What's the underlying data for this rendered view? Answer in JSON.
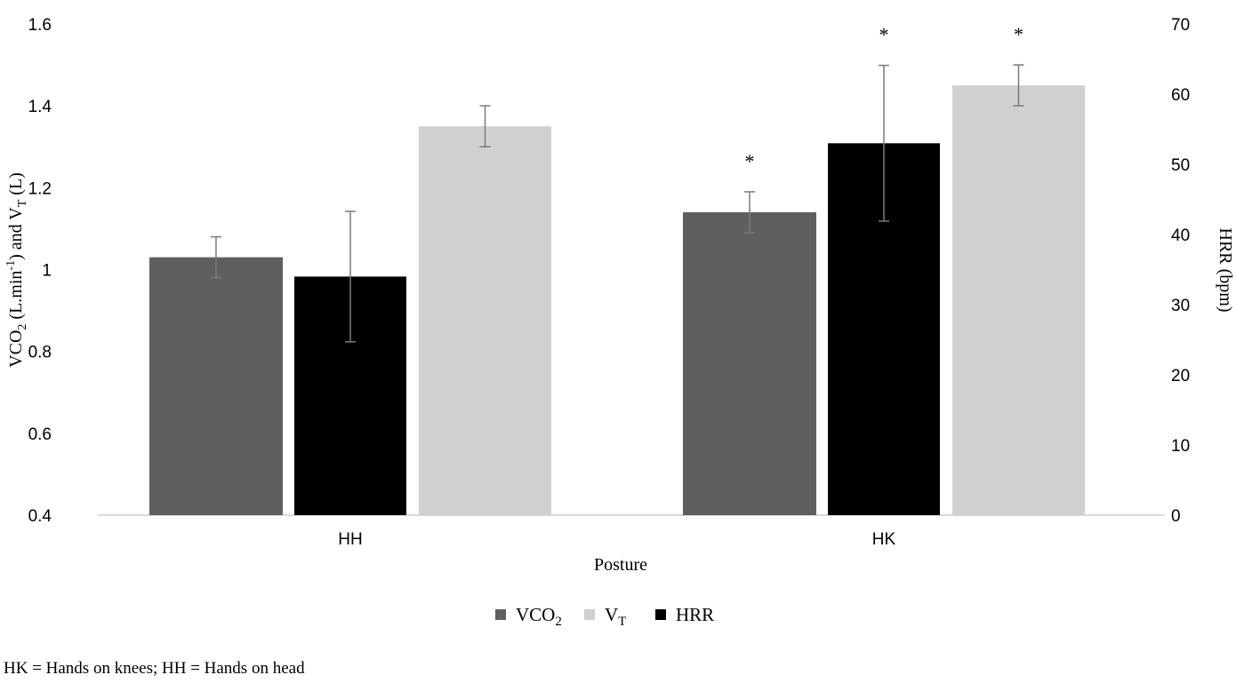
{
  "chart_data": {
    "type": "bar",
    "categories": [
      "HH",
      "HK"
    ],
    "xlabel": "Posture",
    "ylabel_left": {
      "main": "VCO",
      "sub1": "2",
      "mid": " (L.min",
      "sup": "-1",
      "mid2": ")  and V",
      "sub2": "T",
      "end": " (L)"
    },
    "ylabel_right": "HRR (bpm)",
    "ylim_left": [
      0.4,
      1.6
    ],
    "ylim_right": [
      0,
      70
    ],
    "yticks_left": [
      "0.4",
      "0.6",
      "0.8",
      "1",
      "1.2",
      "1.4",
      "1.6"
    ],
    "yticks_right": [
      "0",
      "10",
      "20",
      "30",
      "40",
      "50",
      "60",
      "70"
    ],
    "series": [
      {
        "name": "VCO2",
        "axis": "left",
        "color": "#5f5f5f",
        "values": [
          1.03,
          1.14
        ],
        "err": [
          0.05,
          0.05
        ],
        "sig": [
          false,
          true
        ]
      },
      {
        "name": "HRR",
        "axis": "right",
        "color": "#000000",
        "values": [
          34,
          53
        ],
        "err": [
          9.3,
          11.1
        ],
        "sig": [
          false,
          true
        ]
      },
      {
        "name": "VT",
        "axis": "left",
        "color": "#d0d0d0",
        "values": [
          1.35,
          1.45
        ],
        "err": [
          0.05,
          0.05
        ],
        "sig": [
          false,
          true
        ]
      }
    ],
    "significance_marker": "*",
    "legend": [
      {
        "main": "VCO",
        "sub": "2",
        "color": "#5f5f5f"
      },
      {
        "main": "V",
        "sub": "T",
        "color": "#d0d0d0"
      },
      {
        "main": "HRR",
        "sub": "",
        "color": "#000000"
      }
    ],
    "legend_placement": "bottom",
    "grid": false
  },
  "footnote": "HK = Hands on knees; HH = Hands on head"
}
